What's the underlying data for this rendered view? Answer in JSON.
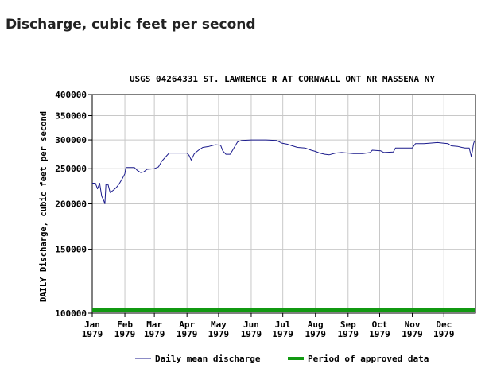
{
  "page": {
    "heading": "Discharge, cubic feet per second"
  },
  "chart_data": {
    "type": "line",
    "title": "USGS 04264331 ST. LAWRENCE R AT CORNWALL ONT NR MASSENA NY",
    "ylabel": "DAILY Discharge, cubic feet per second",
    "xlabel": "",
    "yscale": "log",
    "ylim": [
      100000,
      400000
    ],
    "xlim": [
      "1979-01-01",
      "1979-12-31"
    ],
    "y_ticks": [
      {
        "value": 100000,
        "label": "100000"
      },
      {
        "value": 150000,
        "label": "150000"
      },
      {
        "value": 200000,
        "label": "200000"
      },
      {
        "value": 250000,
        "label": "250000"
      },
      {
        "value": 300000,
        "label": "300000"
      },
      {
        "value": 350000,
        "label": "350000"
      },
      {
        "value": 400000,
        "label": "400000"
      }
    ],
    "x_ticks": [
      {
        "date": "1979-01-01",
        "month": "Jan",
        "year": "1979"
      },
      {
        "date": "1979-02-01",
        "month": "Feb",
        "year": "1979"
      },
      {
        "date": "1979-03-01",
        "month": "Mar",
        "year": "1979"
      },
      {
        "date": "1979-04-01",
        "month": "Apr",
        "year": "1979"
      },
      {
        "date": "1979-05-01",
        "month": "May",
        "year": "1979"
      },
      {
        "date": "1979-06-01",
        "month": "Jun",
        "year": "1979"
      },
      {
        "date": "1979-07-01",
        "month": "Jul",
        "year": "1979"
      },
      {
        "date": "1979-08-01",
        "month": "Aug",
        "year": "1979"
      },
      {
        "date": "1979-09-01",
        "month": "Sep",
        "year": "1979"
      },
      {
        "date": "1979-10-01",
        "month": "Oct",
        "year": "1979"
      },
      {
        "date": "1979-11-01",
        "month": "Nov",
        "year": "1979"
      },
      {
        "date": "1979-12-01",
        "month": "Dec",
        "year": "1979"
      }
    ],
    "grid": true,
    "legend_position": "bottom",
    "series": [
      {
        "name": "Daily mean discharge",
        "color": "#1a1a8c",
        "points": [
          [
            "1979-01-01",
            228000
          ],
          [
            "1979-01-04",
            228000
          ],
          [
            "1979-01-06",
            220000
          ],
          [
            "1979-01-08",
            228000
          ],
          [
            "1979-01-10",
            210000
          ],
          [
            "1979-01-12",
            204000
          ],
          [
            "1979-01-13",
            200000
          ],
          [
            "1979-01-14",
            226000
          ],
          [
            "1979-01-16",
            226000
          ],
          [
            "1979-01-18",
            215000
          ],
          [
            "1979-01-21",
            218000
          ],
          [
            "1979-01-24",
            222000
          ],
          [
            "1979-01-27",
            228000
          ],
          [
            "1979-01-30",
            236000
          ],
          [
            "1979-02-01",
            242000
          ],
          [
            "1979-02-02",
            252000
          ],
          [
            "1979-02-10",
            252000
          ],
          [
            "1979-02-13",
            247000
          ],
          [
            "1979-02-16",
            244000
          ],
          [
            "1979-02-19",
            245000
          ],
          [
            "1979-02-22",
            249000
          ],
          [
            "1979-03-01",
            250000
          ],
          [
            "1979-03-05",
            253000
          ],
          [
            "1979-03-08",
            262000
          ],
          [
            "1979-03-12",
            270000
          ],
          [
            "1979-03-15",
            276000
          ],
          [
            "1979-03-25",
            276000
          ],
          [
            "1979-04-01",
            276000
          ],
          [
            "1979-04-03",
            272000
          ],
          [
            "1979-04-05",
            264000
          ],
          [
            "1979-04-08",
            275000
          ],
          [
            "1979-04-12",
            281000
          ],
          [
            "1979-04-16",
            286000
          ],
          [
            "1979-04-22",
            288000
          ],
          [
            "1979-04-28",
            291000
          ],
          [
            "1979-05-03",
            290000
          ],
          [
            "1979-05-05",
            280000
          ],
          [
            "1979-05-08",
            274000
          ],
          [
            "1979-05-12",
            274000
          ],
          [
            "1979-05-15",
            283000
          ],
          [
            "1979-05-19",
            296000
          ],
          [
            "1979-05-23",
            299000
          ],
          [
            "1979-06-01",
            300000
          ],
          [
            "1979-06-15",
            300000
          ],
          [
            "1979-06-25",
            299000
          ],
          [
            "1979-06-30",
            294000
          ],
          [
            "1979-07-05",
            292000
          ],
          [
            "1979-07-10",
            289000
          ],
          [
            "1979-07-15",
            286000
          ],
          [
            "1979-07-22",
            285000
          ],
          [
            "1979-07-28",
            281000
          ],
          [
            "1979-08-01",
            279000
          ],
          [
            "1979-08-05",
            276000
          ],
          [
            "1979-08-10",
            274000
          ],
          [
            "1979-08-14",
            273000
          ],
          [
            "1979-08-20",
            276000
          ],
          [
            "1979-08-26",
            277000
          ],
          [
            "1979-09-01",
            276000
          ],
          [
            "1979-09-06",
            275000
          ],
          [
            "1979-09-15",
            275000
          ],
          [
            "1979-09-22",
            277000
          ],
          [
            "1979-09-24",
            281000
          ],
          [
            "1979-10-02",
            280000
          ],
          [
            "1979-10-05",
            277000
          ],
          [
            "1979-10-14",
            278000
          ],
          [
            "1979-10-16",
            285000
          ],
          [
            "1979-10-22",
            285000
          ],
          [
            "1979-11-01",
            285000
          ],
          [
            "1979-11-04",
            293000
          ],
          [
            "1979-11-12",
            293000
          ],
          [
            "1979-11-18",
            294000
          ],
          [
            "1979-11-25",
            295000
          ],
          [
            "1979-11-30",
            294000
          ],
          [
            "1979-12-05",
            293000
          ],
          [
            "1979-12-08",
            289000
          ],
          [
            "1979-12-14",
            288000
          ],
          [
            "1979-12-18",
            286000
          ],
          [
            "1979-12-21",
            285000
          ],
          [
            "1979-12-25",
            285000
          ],
          [
            "1979-12-27",
            270000
          ],
          [
            "1979-12-28",
            279000
          ],
          [
            "1979-12-29",
            292000
          ],
          [
            "1979-12-30",
            298000
          ],
          [
            "1979-12-31",
            298000
          ]
        ]
      },
      {
        "name": "Period of approved data",
        "color": "#119911",
        "type": "band",
        "value": 102000,
        "x_start": "1979-01-01",
        "x_end": "1979-12-31"
      }
    ],
    "legend": [
      {
        "label": "Daily mean discharge",
        "color": "#1a1a8c",
        "style": "line"
      },
      {
        "label": "Period of approved data",
        "color": "#119911",
        "style": "thick"
      }
    ]
  }
}
